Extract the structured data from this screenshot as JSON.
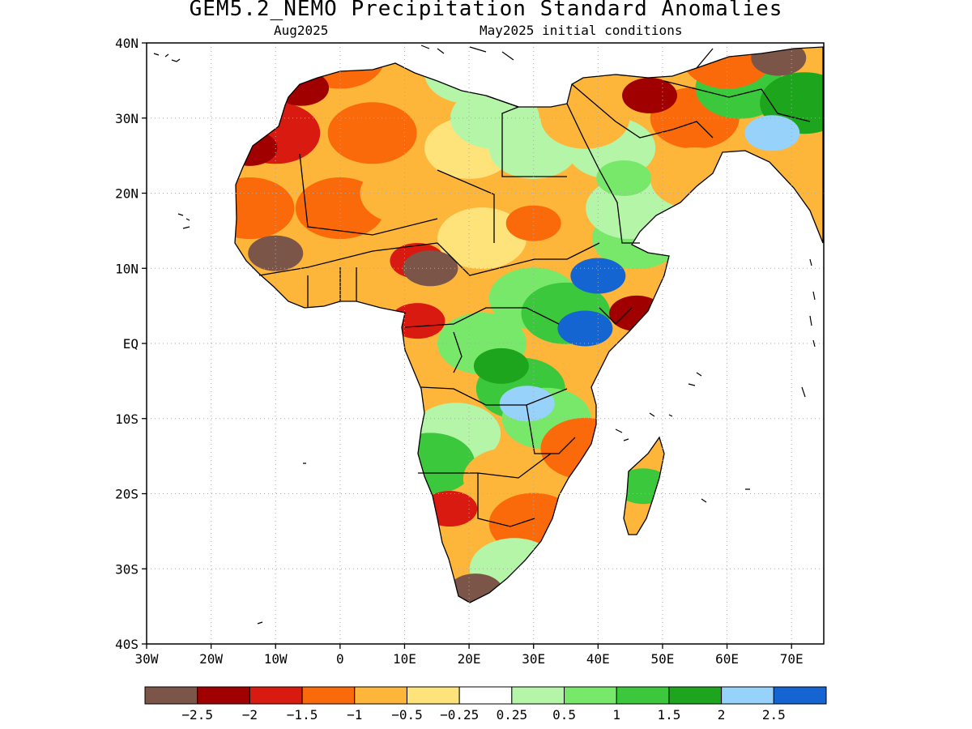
{
  "title": "GEM5.2_NEMO Precipitation Standard Anomalies",
  "subtitle_left": "Aug2025",
  "subtitle_right": "May2025 initial conditions",
  "lat_labels": [
    "40N",
    "30N",
    "20N",
    "10N",
    "EQ",
    "10S",
    "20S",
    "30S",
    "40S"
  ],
  "lon_labels": [
    "30W",
    "20W",
    "10W",
    "0",
    "10E",
    "20E",
    "30E",
    "40E",
    "50E",
    "60E",
    "70E"
  ],
  "colorbar": {
    "colors": [
      "#7a5548",
      "#a00000",
      "#d91a10",
      "#fa6a0a",
      "#fdb53a",
      "#fee27a",
      "#ffffff",
      "#b4f5a8",
      "#78e86a",
      "#3cc83c",
      "#1ea51e",
      "#96d2fa",
      "#1464d2"
    ],
    "labels": [
      "−2.5",
      "−2",
      "−1.5",
      "−1",
      "−0.5",
      "−0.25",
      "0.25",
      "0.5",
      "1",
      "1.5",
      "2",
      "2.5"
    ]
  },
  "map_features": {
    "region": "Africa and Arabian Peninsula",
    "projection": "lat-lon",
    "lat_range": [
      -40,
      40
    ],
    "lon_range": [
      -30,
      75
    ],
    "anomaly_fields": [
      {
        "area": "Sahel west",
        "lon": -10,
        "lat": 12,
        "category": "−2.5"
      },
      {
        "area": "Western Sahara coast",
        "lon": -14,
        "lat": 26,
        "category": "−2"
      },
      {
        "area": "Morocco",
        "lon": -6,
        "lat": 34,
        "category": "−2"
      },
      {
        "area": "Nigeria-Chad",
        "lon": 12,
        "lat": 11,
        "category": "−1.5"
      },
      {
        "area": "Lake Chad",
        "lon": 14,
        "lat": 10,
        "category": "−2.5"
      },
      {
        "area": "Cameroon-Gabon",
        "lon": 12,
        "lat": 3,
        "category": "−1.5"
      },
      {
        "area": "Sudan",
        "lon": 30,
        "lat": 16,
        "category": "−1"
      },
      {
        "area": "Ethiopia highlands",
        "lon": 40,
        "lat": 9,
        "category": "2.5"
      },
      {
        "area": "Kenya",
        "lon": 38,
        "lat": 2,
        "category": "2.5"
      },
      {
        "area": "Somalia coast",
        "lon": 46,
        "lat": 4,
        "category": "−2"
      },
      {
        "area": "Congo basin east",
        "lon": 25,
        "lat": -3,
        "category": "1.5"
      },
      {
        "area": "Lake Tanganyika",
        "lon": 29,
        "lat": -8,
        "category": "2"
      },
      {
        "area": "Angola-Namibia",
        "lon": 17,
        "lat": -22,
        "category": "−1.5"
      },
      {
        "area": "South Africa southwest",
        "lon": 21,
        "lat": -33,
        "category": "−2.5"
      },
      {
        "area": "Madagascar",
        "lon": 47,
        "lat": -19,
        "category": "1"
      },
      {
        "area": "Iraq-Iran",
        "lon": 48,
        "lat": 33,
        "category": "−2"
      },
      {
        "area": "Pakistan",
        "lon": 67,
        "lat": 28,
        "category": "2"
      },
      {
        "area": "Turkey east",
        "lon": 68,
        "lat": 38,
        "category": "−2.5"
      },
      {
        "area": "Saudi Arabia",
        "lon": 44,
        "lat": 22,
        "category": "0.5"
      }
    ]
  }
}
